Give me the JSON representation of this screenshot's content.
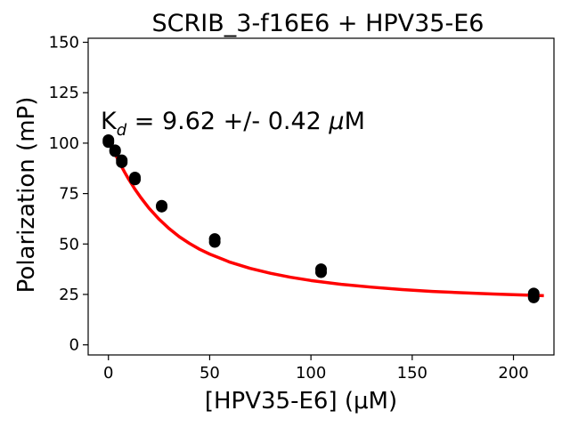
{
  "chart_data": {
    "type": "scatter",
    "title": "SCRIB_3-f16E6 + HPV35-E6",
    "xlabel": "[HPV35-E6] (μM)",
    "ylabel": "Polarization (mP)",
    "xlim": [
      -10,
      220
    ],
    "ylim": [
      -5,
      152
    ],
    "xticks": [
      0,
      50,
      100,
      150,
      200
    ],
    "yticks": [
      0,
      25,
      50,
      75,
      100,
      125,
      150
    ],
    "grid": false,
    "annotation": {
      "prefix": "K",
      "subscript": "d",
      "text": " = 9.62 +/- 0.42 ",
      "mu": "μ",
      "unit": "M"
    },
    "points": {
      "color": "#000000",
      "x": [
        0,
        0,
        3.3,
        3.3,
        6.6,
        6.6,
        13.1,
        13.1,
        26.3,
        26.3,
        52.5,
        52.5,
        105,
        105,
        210,
        210
      ],
      "y": [
        101.5,
        100.5,
        96.5,
        96,
        91.5,
        90.5,
        83,
        82,
        69,
        68.5,
        52.5,
        51,
        37.5,
        36,
        25.5,
        23.5
      ]
    },
    "fit": {
      "color": "#ff0000",
      "x": [
        0,
        2,
        4,
        6,
        8,
        10,
        13,
        16,
        20,
        25,
        30,
        35,
        40,
        45,
        50,
        60,
        70,
        80,
        90,
        100,
        115,
        130,
        145,
        160,
        175,
        190,
        205,
        215
      ],
      "y": [
        102,
        97.5,
        93.3,
        89.3,
        85.6,
        82.1,
        77.3,
        73,
        67.8,
        62.3,
        57.6,
        53.6,
        50.3,
        47.4,
        45,
        41,
        37.9,
        35.5,
        33.5,
        31.9,
        30,
        28.6,
        27.4,
        26.5,
        25.8,
        25.2,
        24.7,
        24.4
      ]
    }
  }
}
